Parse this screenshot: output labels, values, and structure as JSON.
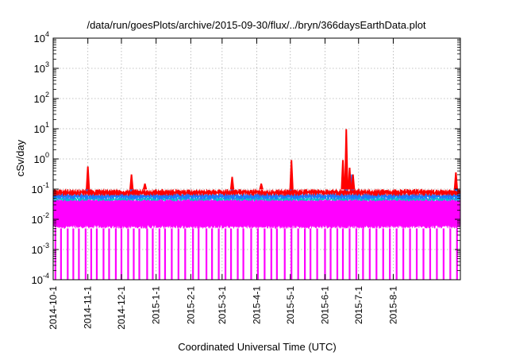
{
  "chart_data": {
    "type": "line",
    "title": "/data/run/goesPlots/archive/2015-09-30/flux/../bryn/366daysEarthData.plot",
    "xlabel": "Coordinated Universal Time (UTC)",
    "ylabel": "cSv/day",
    "yscale": "log",
    "ylim": [
      0.0001,
      10000
    ],
    "xlim": [
      "2014-10-01",
      "2015-09-30"
    ],
    "y_ticks": [
      {
        "value": 0.0001,
        "base": "10",
        "exp": "-4"
      },
      {
        "value": 0.001,
        "base": "10",
        "exp": "-3"
      },
      {
        "value": 0.01,
        "base": "10",
        "exp": "-2"
      },
      {
        "value": 0.1,
        "base": "10",
        "exp": "-1"
      },
      {
        "value": 1,
        "base": "10",
        "exp": "0"
      },
      {
        "value": 10,
        "base": "10",
        "exp": "1"
      },
      {
        "value": 100,
        "base": "10",
        "exp": "2"
      },
      {
        "value": 1000,
        "base": "10",
        "exp": "3"
      },
      {
        "value": 10000,
        "base": "10",
        "exp": "4"
      }
    ],
    "x_ticks": [
      "2014-10-1",
      "2014-11-1",
      "2014-12-1",
      "2015-1-1",
      "2015-2-1",
      "2015-3-1",
      "2015-4-1",
      "2015-5-1",
      "2015-6-1",
      "2015-7-1",
      "2015-8-1"
    ],
    "grid": true,
    "series": [
      {
        "color": "#ff00ff",
        "band": [
          0.005,
          0.05
        ],
        "dropouts_to": 0.0001,
        "dropout_dates": [
          "2014-10-03",
          "2014-10-08",
          "2014-10-14",
          "2014-10-19",
          "2014-10-24",
          "2014-10-30",
          "2014-11-04",
          "2014-11-09",
          "2014-11-15",
          "2014-11-20",
          "2014-11-26",
          "2014-12-01",
          "2014-12-07",
          "2014-12-12",
          "2014-12-17",
          "2014-12-24",
          "2014-12-29",
          "2015-01-04",
          "2015-01-09",
          "2015-01-15",
          "2015-01-21",
          "2015-01-27",
          "2015-02-03",
          "2015-02-08",
          "2015-02-15",
          "2015-02-20",
          "2015-02-26",
          "2015-03-04",
          "2015-03-09",
          "2015-03-15",
          "2015-03-20",
          "2015-03-27",
          "2015-04-02",
          "2015-04-08",
          "2015-04-14",
          "2015-04-19",
          "2015-04-26",
          "2015-05-02",
          "2015-05-08",
          "2015-05-14",
          "2015-05-19",
          "2015-05-25",
          "2015-06-01",
          "2015-06-06",
          "2015-06-12",
          "2015-06-17",
          "2015-06-23",
          "2015-06-29",
          "2015-07-05",
          "2015-07-11",
          "2015-07-17",
          "2015-07-23",
          "2015-07-29",
          "2015-08-04",
          "2015-08-10",
          "2015-08-16",
          "2015-08-22",
          "2015-08-28",
          "2015-09-03",
          "2015-09-09",
          "2015-09-15",
          "2015-09-21",
          "2015-09-27"
        ]
      },
      {
        "color": "#00c8c8",
        "band": [
          0.04,
          0.055
        ]
      },
      {
        "color": "#1e78ff",
        "band": [
          0.045,
          0.075
        ],
        "peaks": [
          {
            "x": "2014-11-01",
            "y": 0.25
          },
          {
            "x": "2014-12-10",
            "y": 0.15
          },
          {
            "x": "2015-03-10",
            "y": 0.15
          },
          {
            "x": "2015-05-02",
            "y": 0.3
          },
          {
            "x": "2015-06-20",
            "y": 2.5
          },
          {
            "x": "2015-06-25",
            "y": 0.3
          },
          {
            "x": "2015-09-26",
            "y": 0.18
          }
        ]
      },
      {
        "color": "#ff0000",
        "band": [
          0.06,
          0.1
        ],
        "peaks": [
          {
            "x": "2014-11-01",
            "y": 0.55
          },
          {
            "x": "2014-12-10",
            "y": 0.3
          },
          {
            "x": "2014-12-22",
            "y": 0.15
          },
          {
            "x": "2015-03-10",
            "y": 0.25
          },
          {
            "x": "2015-04-05",
            "y": 0.15
          },
          {
            "x": "2015-05-02",
            "y": 0.9
          },
          {
            "x": "2015-06-17",
            "y": 0.9
          },
          {
            "x": "2015-06-20",
            "y": 9.5
          },
          {
            "x": "2015-06-23",
            "y": 0.5
          },
          {
            "x": "2015-06-26",
            "y": 0.3
          },
          {
            "x": "2015-09-26",
            "y": 0.35
          }
        ]
      }
    ]
  }
}
